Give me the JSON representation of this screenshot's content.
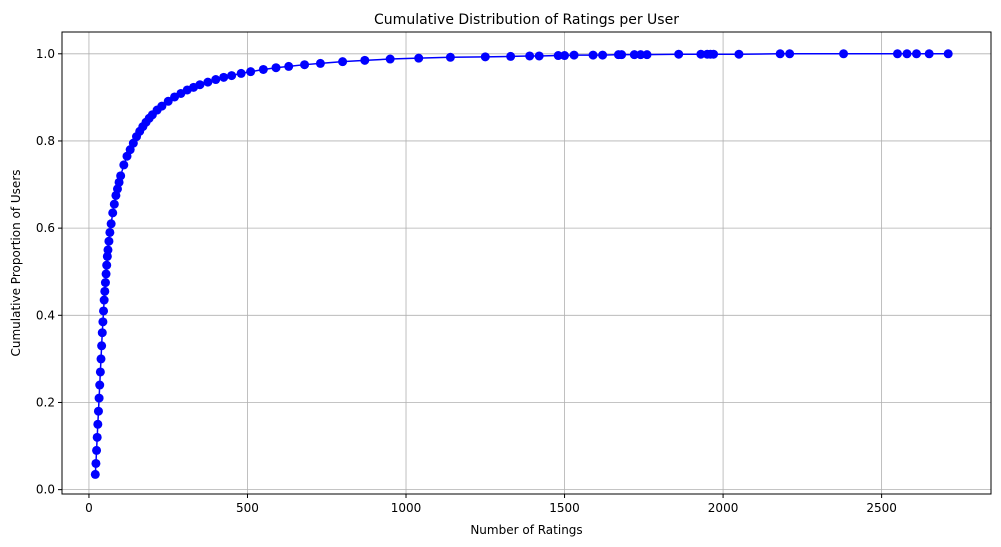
{
  "chart_data": {
    "type": "line",
    "title": "Cumulative Distribution of Ratings per User",
    "xlabel": "Number of Ratings",
    "ylabel": "Cumulative Proportion of Users",
    "xlim": [
      -85,
      2845
    ],
    "ylim": [
      -0.01,
      1.05
    ],
    "xticks": [
      0,
      500,
      1000,
      1500,
      2000,
      2500
    ],
    "yticks": [
      0.0,
      0.2,
      0.4,
      0.6,
      0.8,
      1.0
    ],
    "xtick_labels": [
      "0",
      "500",
      "1000",
      "1500",
      "2000",
      "2500"
    ],
    "ytick_labels": [
      "0.0",
      "0.2",
      "0.4",
      "0.6",
      "0.8",
      "1.0"
    ],
    "grid": true,
    "legend": "none",
    "marker": "circle",
    "series": [
      {
        "color": "#0000ff",
        "x": [
          20,
          22,
          24,
          26,
          28,
          30,
          32,
          34,
          36,
          38,
          40,
          42,
          44,
          46,
          48,
          50,
          52,
          54,
          56,
          58,
          60,
          63,
          66,
          70,
          75,
          80,
          85,
          90,
          95,
          100,
          110,
          120,
          130,
          140,
          150,
          160,
          170,
          180,
          190,
          200,
          215,
          230,
          250,
          270,
          290,
          310,
          330,
          350,
          375,
          400,
          425,
          450,
          480,
          510,
          550,
          590,
          630,
          680,
          730,
          800,
          870,
          950,
          1040,
          1140,
          1250,
          1330,
          1390,
          1420,
          1480,
          1500,
          1530,
          1590,
          1620,
          1670,
          1680,
          1720,
          1740,
          1760,
          1860,
          1930,
          1950,
          1960,
          1970,
          2050,
          2180,
          2210,
          2380,
          2550,
          2580,
          2610,
          2650,
          2710
        ],
        "y": [
          0.035,
          0.06,
          0.09,
          0.12,
          0.15,
          0.18,
          0.21,
          0.24,
          0.27,
          0.3,
          0.33,
          0.36,
          0.385,
          0.41,
          0.435,
          0.455,
          0.475,
          0.495,
          0.515,
          0.535,
          0.55,
          0.57,
          0.59,
          0.61,
          0.635,
          0.655,
          0.675,
          0.69,
          0.705,
          0.72,
          0.745,
          0.765,
          0.78,
          0.795,
          0.81,
          0.822,
          0.833,
          0.843,
          0.852,
          0.86,
          0.871,
          0.88,
          0.891,
          0.901,
          0.909,
          0.917,
          0.923,
          0.929,
          0.935,
          0.941,
          0.946,
          0.95,
          0.955,
          0.959,
          0.964,
          0.968,
          0.971,
          0.975,
          0.978,
          0.982,
          0.985,
          0.988,
          0.99,
          0.992,
          0.993,
          0.994,
          0.995,
          0.995,
          0.996,
          0.996,
          0.997,
          0.997,
          0.997,
          0.998,
          0.998,
          0.998,
          0.998,
          0.998,
          0.999,
          0.999,
          0.999,
          0.999,
          0.999,
          0.999,
          1.0,
          1.0,
          1.0,
          1.0,
          1.0,
          1.0,
          1.0,
          1.0
        ]
      }
    ]
  }
}
